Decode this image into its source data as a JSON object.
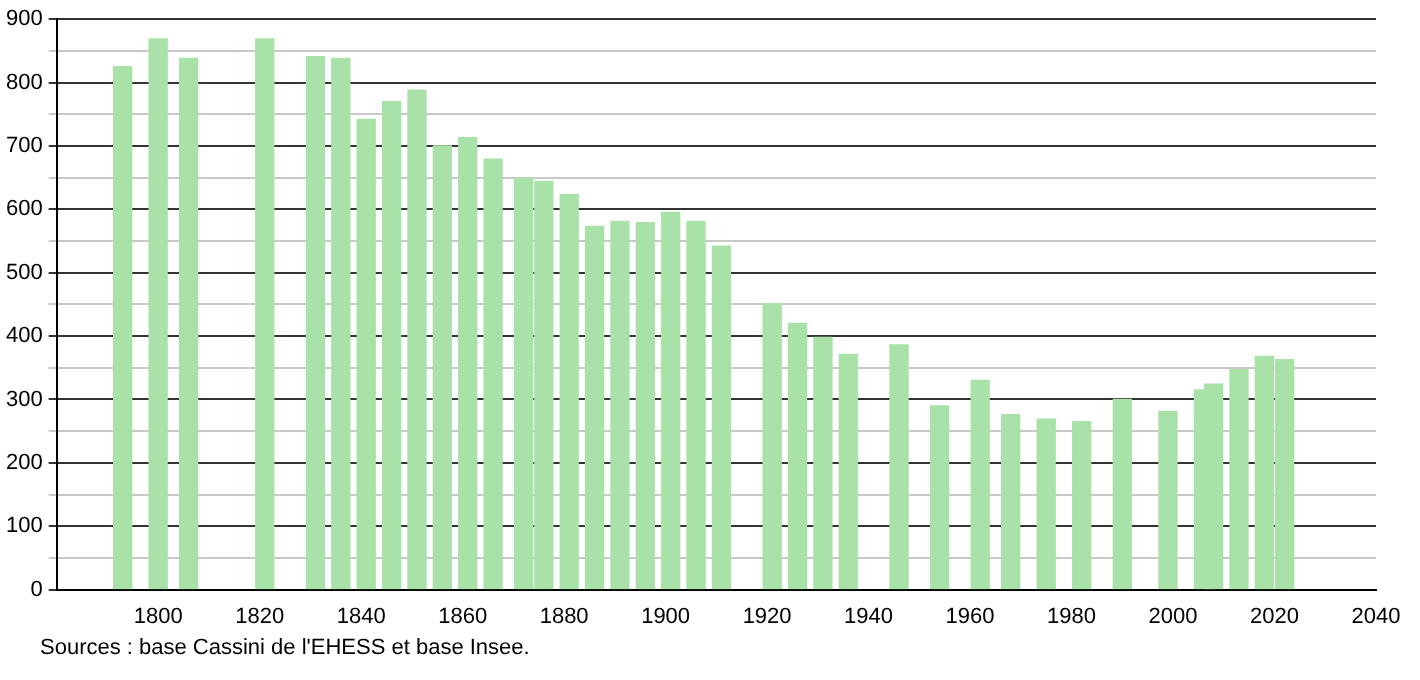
{
  "chart_data": {
    "type": "bar",
    "x": [
      1793,
      1800,
      1806,
      1821,
      1831,
      1836,
      1841,
      1846,
      1851,
      1856,
      1861,
      1866,
      1872,
      1876,
      1881,
      1886,
      1891,
      1896,
      1901,
      1906,
      1911,
      1921,
      1926,
      1931,
      1936,
      1946,
      1954,
      1962,
      1968,
      1975,
      1982,
      1990,
      1999,
      2006,
      2008,
      2013,
      2018,
      2022
    ],
    "values": [
      825,
      869,
      838,
      869,
      841,
      838,
      742,
      770,
      788,
      700,
      713,
      679,
      649,
      644,
      623,
      573,
      581,
      579,
      595,
      581,
      542,
      451,
      420,
      398,
      371,
      386,
      290,
      330,
      276,
      269,
      265,
      300,
      281,
      315,
      324,
      347,
      368,
      363
    ],
    "color": "#a8e2a8",
    "xlim": [
      1780,
      2040
    ],
    "xticks": [
      1800,
      1820,
      1840,
      1860,
      1880,
      1900,
      1920,
      1940,
      1960,
      1980,
      2000,
      2020,
      2040
    ],
    "ylim": [
      0,
      900
    ],
    "yticks": [
      0,
      {
        "value": 50,
        "label": null
      },
      100,
      {
        "value": 150,
        "label": null
      },
      200,
      {
        "value": 250,
        "label": null
      },
      300,
      {
        "value": 350,
        "label": null
      },
      400,
      {
        "value": 450,
        "label": null
      },
      500,
      {
        "value": 550,
        "label": null
      },
      600,
      {
        "value": 650,
        "label": null
      },
      700,
      {
        "value": 750,
        "label": null
      },
      800,
      {
        "value": 850,
        "label": null
      },
      900
    ],
    "grid": "y",
    "annotations": [
      "Sources : base Cassini de l'EHESS et base Insee."
    ]
  }
}
